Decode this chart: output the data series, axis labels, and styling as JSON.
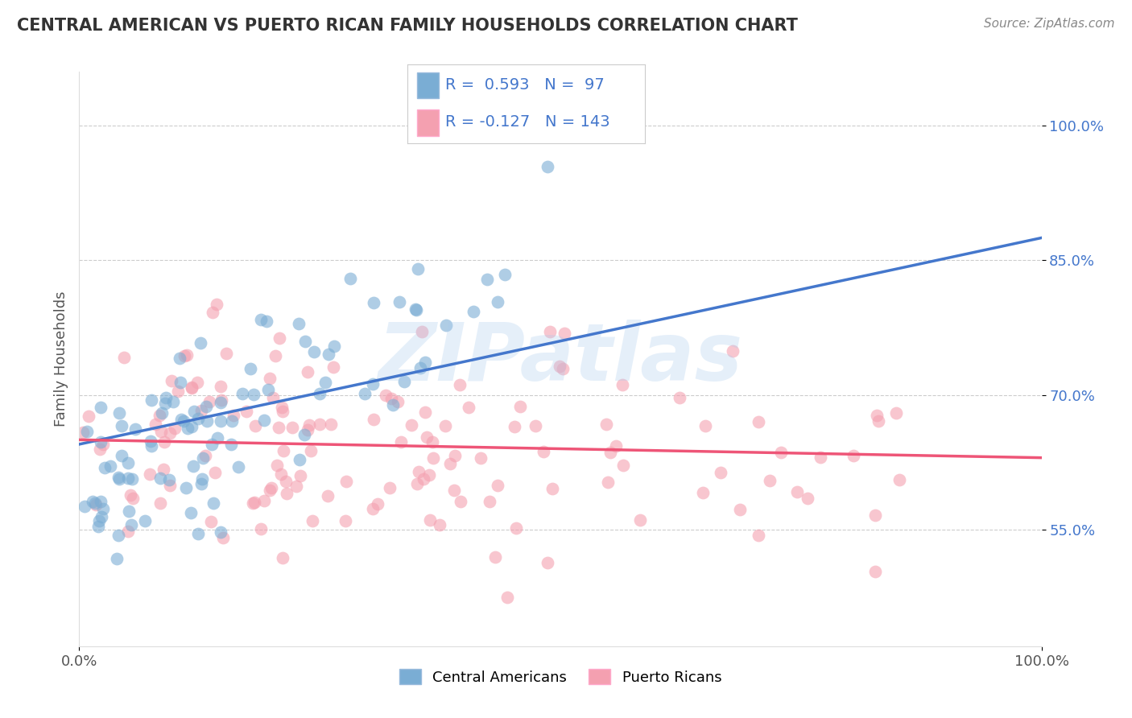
{
  "title": "CENTRAL AMERICAN VS PUERTO RICAN FAMILY HOUSEHOLDS CORRELATION CHART",
  "source": "Source: ZipAtlas.com",
  "ylabel": "Family Households",
  "xlabel": "",
  "xlim": [
    0.0,
    1.0
  ],
  "ylim": [
    0.42,
    1.06
  ],
  "yticks": [
    0.55,
    0.7,
    0.85,
    1.0
  ],
  "ytick_labels": [
    "55.0%",
    "70.0%",
    "85.0%",
    "100.0%"
  ],
  "xticks": [
    0.0,
    1.0
  ],
  "xtick_labels": [
    "0.0%",
    "100.0%"
  ],
  "blue_R": 0.593,
  "blue_N": 97,
  "pink_R": -0.127,
  "pink_N": 143,
  "blue_color": "#7AADD4",
  "pink_color": "#F4A0B0",
  "blue_line_color": "#4477CC",
  "pink_line_color": "#EE5577",
  "legend_label_blue": "Central Americans",
  "legend_label_pink": "Puerto Ricans",
  "background_color": "#FFFFFF",
  "grid_color": "#CCCCCC",
  "title_color": "#333333",
  "watermark_color": "#AACCEE",
  "blue_line_start_y": 0.645,
  "blue_line_end_y": 0.875,
  "pink_line_start_y": 0.65,
  "pink_line_end_y": 0.63
}
